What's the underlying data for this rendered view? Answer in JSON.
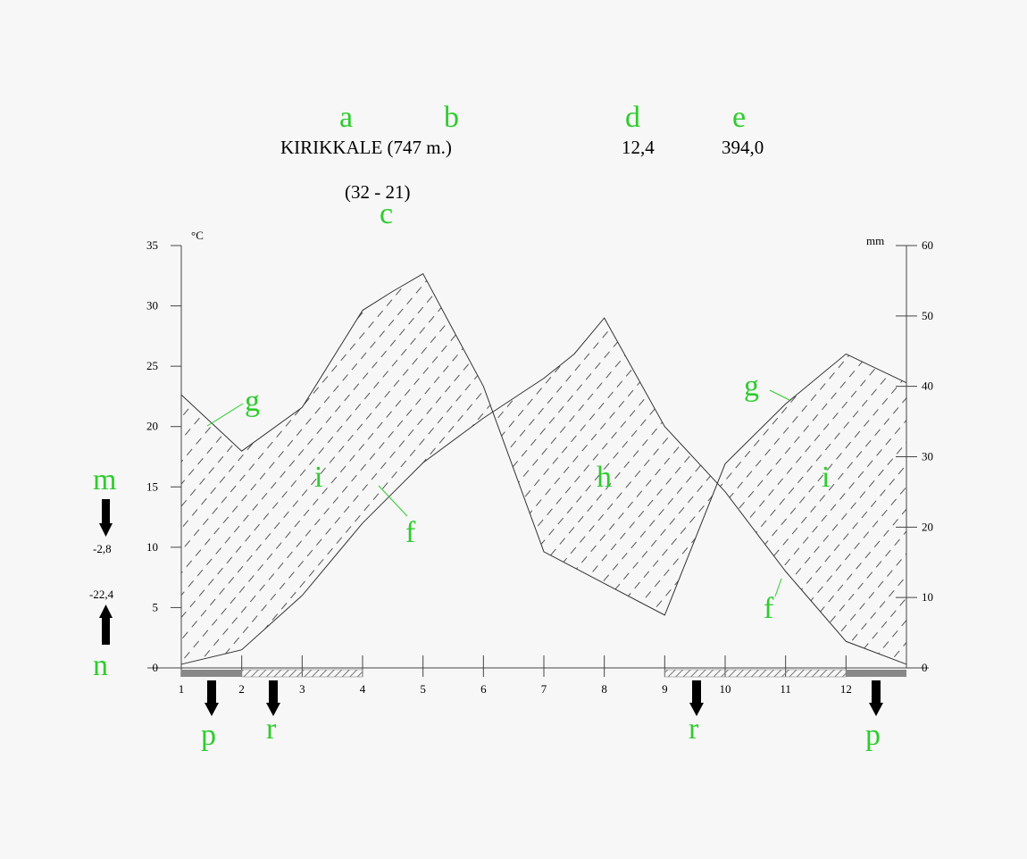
{
  "header": {
    "station": "KIRIKKALE (747 m.)",
    "years": "(32 - 21)",
    "mean_temp": "12,4",
    "total_precip": "394,0"
  },
  "side": {
    "abs_min_avg": "-2,8",
    "abs_min": "-22,4"
  },
  "axis": {
    "left_unit": "°C",
    "right_unit": "mm"
  },
  "letters": {
    "a": "a",
    "b": "b",
    "c": "c",
    "d": "d",
    "e": "e",
    "f": "f",
    "g": "g",
    "h": "h",
    "i": "i",
    "m": "m",
    "n": "n",
    "p": "p",
    "r": "r"
  },
  "colors": {
    "label_green": "#2ecc2e",
    "hatch": "#555555",
    "frost_bar": "#888888"
  },
  "chart_data": {
    "type": "area",
    "x": [
      1,
      2,
      3,
      4,
      5,
      6,
      7,
      8,
      9,
      10,
      11,
      12
    ],
    "xlim": [
      1,
      13
    ],
    "y_left": {
      "label": "°C",
      "lim": [
        0,
        35
      ],
      "ticks": [
        0,
        5,
        10,
        15,
        20,
        25,
        30,
        35
      ]
    },
    "y_right": {
      "label": "mm",
      "lim": [
        0,
        60
      ],
      "ticks": [
        0,
        10,
        20,
        30,
        40,
        50,
        60
      ]
    },
    "temp_line": [
      [
        1,
        0.3
      ],
      [
        2,
        1.5
      ],
      [
        3,
        6.0
      ],
      [
        4,
        12.0
      ],
      [
        4.5,
        14.5
      ],
      [
        5,
        17.0
      ],
      [
        6,
        20.7
      ],
      [
        7,
        24.0
      ],
      [
        7.5,
        26.0
      ],
      [
        8,
        29.0
      ],
      [
        9,
        20.0
      ],
      [
        10,
        14.6
      ],
      [
        11,
        8.0
      ],
      [
        12,
        2.2
      ],
      [
        13,
        0.3
      ]
    ],
    "precip_line": [
      [
        1,
        38.8
      ],
      [
        2,
        30.8
      ],
      [
        3,
        37.0
      ],
      [
        4,
        50.8
      ],
      [
        4.5,
        53.5
      ],
      [
        5,
        56.0
      ],
      [
        6,
        40.0
      ],
      [
        7,
        16.5
      ],
      [
        8,
        12.0
      ],
      [
        9,
        7.5
      ],
      [
        10,
        29.0
      ],
      [
        11,
        37.5
      ],
      [
        12,
        44.6
      ],
      [
        13,
        40.5
      ]
    ],
    "frost_months_certain": [
      [
        1,
        2
      ],
      [
        12,
        13
      ]
    ],
    "frost_months_possible": [
      [
        2,
        4
      ],
      [
        9,
        12
      ]
    ]
  }
}
